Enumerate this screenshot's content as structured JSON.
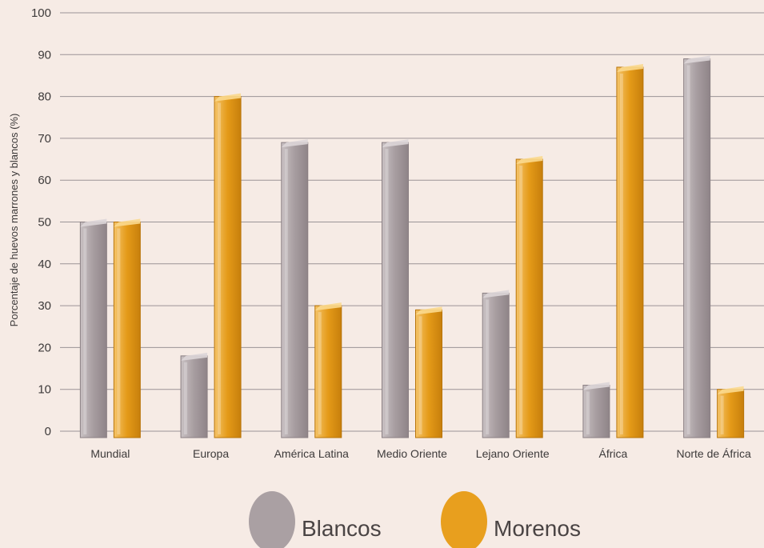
{
  "chart_data": {
    "type": "bar",
    "title": "",
    "xlabel": "",
    "ylabel": "Porcentaje de huevos marrones y blancos (%)",
    "ylim": [
      0,
      100
    ],
    "yticks": [
      0,
      10,
      20,
      30,
      40,
      50,
      60,
      70,
      80,
      90,
      100
    ],
    "categories": [
      "Mundial",
      "Europa",
      "América Latina",
      "Medio Oriente",
      "Lejano Oriente",
      "África",
      "Norte de África"
    ],
    "series": [
      {
        "name": "Blancos",
        "color": "#aaa0a3",
        "values": [
          50,
          18,
          69,
          69,
          33,
          11,
          89
        ]
      },
      {
        "name": "Morenos",
        "color": "#e89f1e",
        "values": [
          50,
          80,
          30,
          29,
          65,
          87,
          10
        ]
      }
    ],
    "grid": true,
    "legend_position": "bottom"
  }
}
